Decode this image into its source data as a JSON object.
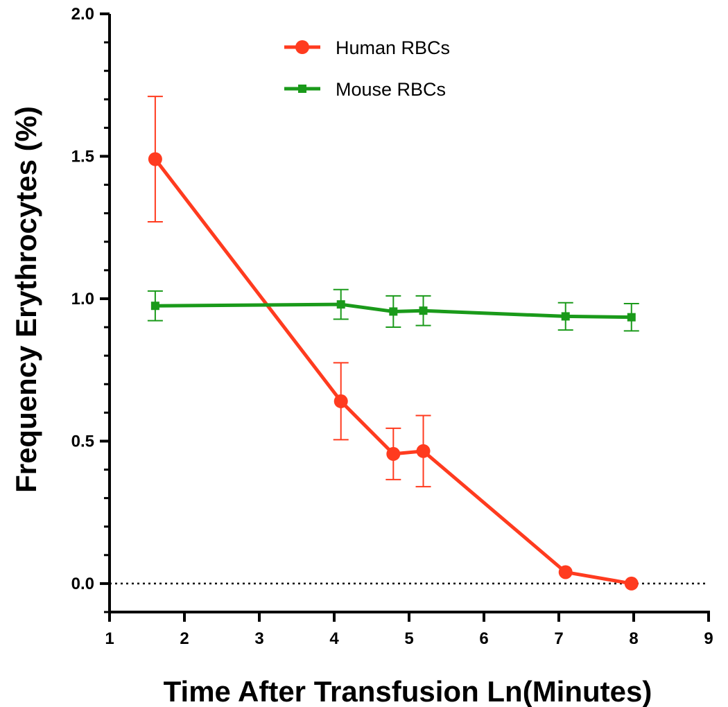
{
  "chart_data": {
    "type": "line",
    "title": "",
    "xlabel": "Time After Transfusion Ln(Minutes)",
    "ylabel": "Frequency Erythrocytes (%)",
    "xlim": [
      1,
      9
    ],
    "ylim": [
      -0.1,
      2.0
    ],
    "x_ticks": [
      1,
      2,
      3,
      4,
      5,
      6,
      7,
      8,
      9
    ],
    "y_ticks": [
      0.0,
      0.5,
      1.0,
      1.5,
      2.0
    ],
    "x_tick_labels": [
      "1",
      "2",
      "3",
      "4",
      "5",
      "6",
      "7",
      "8",
      "9"
    ],
    "y_tick_labels": [
      "0.0",
      "0.5",
      "1.0",
      "1.5",
      "2.0"
    ],
    "reference_line": {
      "y": 0,
      "style": "dotted"
    },
    "grid": false,
    "legend_position": "top-center",
    "series": [
      {
        "name": "Human RBCs",
        "color": "#ff3b1f",
        "marker": "circle",
        "x": [
          1.61,
          4.09,
          4.79,
          5.19,
          7.09,
          7.97
        ],
        "y": [
          1.49,
          0.64,
          0.455,
          0.465,
          0.04,
          0.0
        ],
        "error": [
          0.22,
          0.135,
          0.09,
          0.125,
          0.0,
          0.0
        ]
      },
      {
        "name": "Mouse RBCs",
        "color": "#1a9a1a",
        "marker": "square",
        "x": [
          1.61,
          4.09,
          4.79,
          5.19,
          7.09,
          7.97
        ],
        "y": [
          0.975,
          0.98,
          0.955,
          0.958,
          0.938,
          0.935
        ],
        "error": [
          0.052,
          0.052,
          0.055,
          0.052,
          0.048,
          0.048
        ]
      }
    ]
  }
}
